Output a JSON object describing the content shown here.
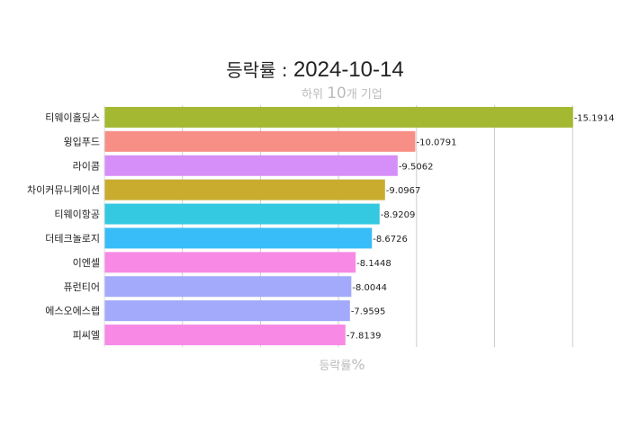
{
  "title": {
    "label": "등락률",
    "separator": " : ",
    "date": "2024-10-14"
  },
  "subtitle": {
    "prefix": "하위 ",
    "count": "10",
    "suffix": "개 기업"
  },
  "xaxis": {
    "label": "등락률",
    "unit": "%"
  },
  "chart_data": {
    "type": "bar",
    "orientation": "horizontal",
    "categories": [
      "티웨이홀딩스",
      "윙입푸드",
      "라이콤",
      "차이커뮤니케이션",
      "티웨이항공",
      "더테크놀로지",
      "이엔셀",
      "퓨런티어",
      "에스오에스랩",
      "피씨엘"
    ],
    "values": [
      -15.1914,
      -10.0791,
      -9.5062,
      -9.0967,
      -8.9209,
      -8.6726,
      -8.1448,
      -8.0044,
      -7.9595,
      -7.8139
    ],
    "value_labels": [
      "-15.1914",
      "-10.0791",
      "-9.5062",
      "-9.0967",
      "-8.9209",
      "-8.6726",
      "-8.1448",
      "-8.0044",
      "-7.9595",
      "-7.8139"
    ],
    "colors": [
      "#a4b832",
      "#f88f87",
      "#d68ef8",
      "#c9ac2e",
      "#34c9e1",
      "#38bdf8",
      "#f88ae6",
      "#a3a9fb",
      "#a3a9fb",
      "#f88ae6"
    ],
    "xlim": [
      0,
      15.2
    ],
    "grid": true,
    "legend": "none"
  }
}
